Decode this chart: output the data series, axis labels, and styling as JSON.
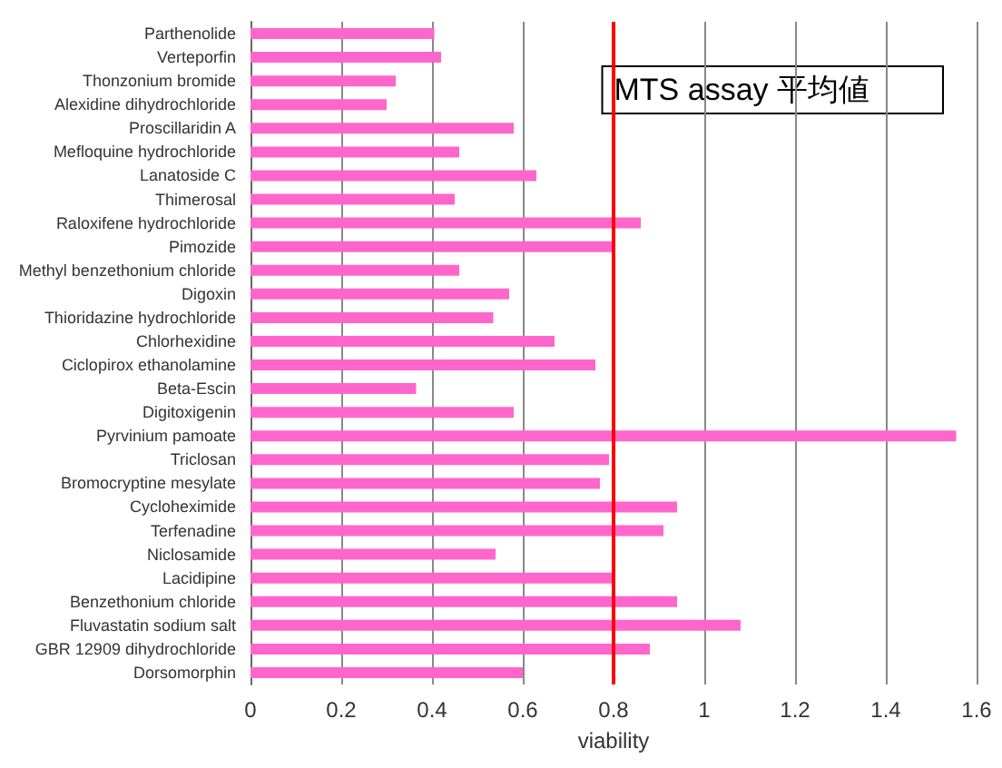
{
  "chart_data": {
    "type": "bar",
    "orientation": "horizontal",
    "xlabel": "viability",
    "categories": [
      "Parthenolide",
      "Verteporfin",
      "Thonzonium bromide",
      "Alexidine dihydrochloride",
      "Proscillaridin A",
      "Mefloquine hydrochloride",
      "Lanatoside C",
      "Thimerosal",
      "Raloxifene hydrochloride",
      "Pimozide",
      "Methyl benzethonium chloride",
      "Digoxin",
      "Thioridazine hydrochloride",
      "Chlorhexidine",
      "Ciclopirox ethanolamine",
      "Beta-Escin",
      "Digitoxigenin",
      "Pyrvinium pamoate",
      "Triclosan",
      "Bromocryptine mesylate",
      "Cycloheximide",
      "Terfenadine",
      "Niclosamide",
      "Lacidipine",
      "Benzethonium chloride",
      "Fluvastatin sodium salt",
      "GBR 12909 dihydrochloride",
      "Dorsomorphin"
    ],
    "values": [
      0.405,
      0.42,
      0.32,
      0.3,
      0.58,
      0.46,
      0.63,
      0.45,
      0.86,
      0.8,
      0.46,
      0.57,
      0.535,
      0.67,
      0.76,
      0.365,
      0.58,
      1.555,
      0.79,
      0.77,
      0.94,
      0.91,
      0.54,
      0.8,
      0.94,
      1.08,
      0.88,
      0.6
    ],
    "color": "#ff66cc",
    "xlim": [
      0,
      1.6
    ],
    "xticks": [
      0,
      0.2,
      0.4,
      0.6,
      0.8,
      1,
      1.2,
      1.4,
      1.6
    ],
    "grid": "x",
    "ref_lines": [
      {
        "axis": "x",
        "value": 0.8,
        "label": "MTS assay 平均値",
        "color": "#ff0000"
      }
    ]
  }
}
